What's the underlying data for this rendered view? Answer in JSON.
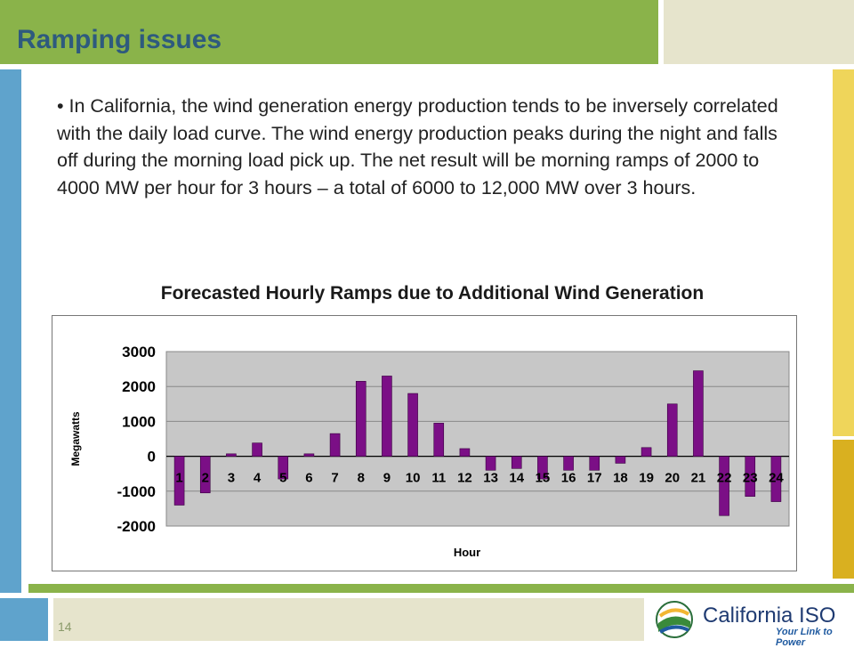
{
  "slide": {
    "title": "Ramping issues",
    "bullet": "• In California, the wind generation energy production tends to be inversely correlated with the daily load curve.  The wind energy production peaks during the night and falls off during the morning load pick up.  The net result will be morning ramps of 2000 to 4000 MW per hour for 3 hours – a total of 6000 to 12,000 MW over 3 hours.",
    "page_number": "14"
  },
  "logo": {
    "name": "California ISO",
    "tagline": "Your Link to Power"
  },
  "chart_data": {
    "type": "bar",
    "title": "Forecasted Hourly Ramps due to Additional Wind Generation",
    "xlabel": "Hour",
    "ylabel": "Megawatts",
    "categories": [
      "1",
      "2",
      "3",
      "4",
      "5",
      "6",
      "7",
      "8",
      "9",
      "10",
      "11",
      "12",
      "13",
      "14",
      "15",
      "16",
      "17",
      "18",
      "19",
      "20",
      "21",
      "22",
      "23",
      "24"
    ],
    "values": [
      -1400,
      -1050,
      70,
      380,
      -650,
      70,
      650,
      2150,
      2300,
      1800,
      950,
      220,
      -400,
      -350,
      -650,
      -400,
      -400,
      -200,
      250,
      1500,
      2450,
      -1700,
      -1150,
      -1300
    ],
    "ylim": [
      -2000,
      3000
    ],
    "yticks": [
      3000,
      2000,
      1000,
      0,
      -1000,
      -2000
    ],
    "bar_color": "#7b0f86",
    "plot_background": "#c7c7c7",
    "grid": true
  }
}
